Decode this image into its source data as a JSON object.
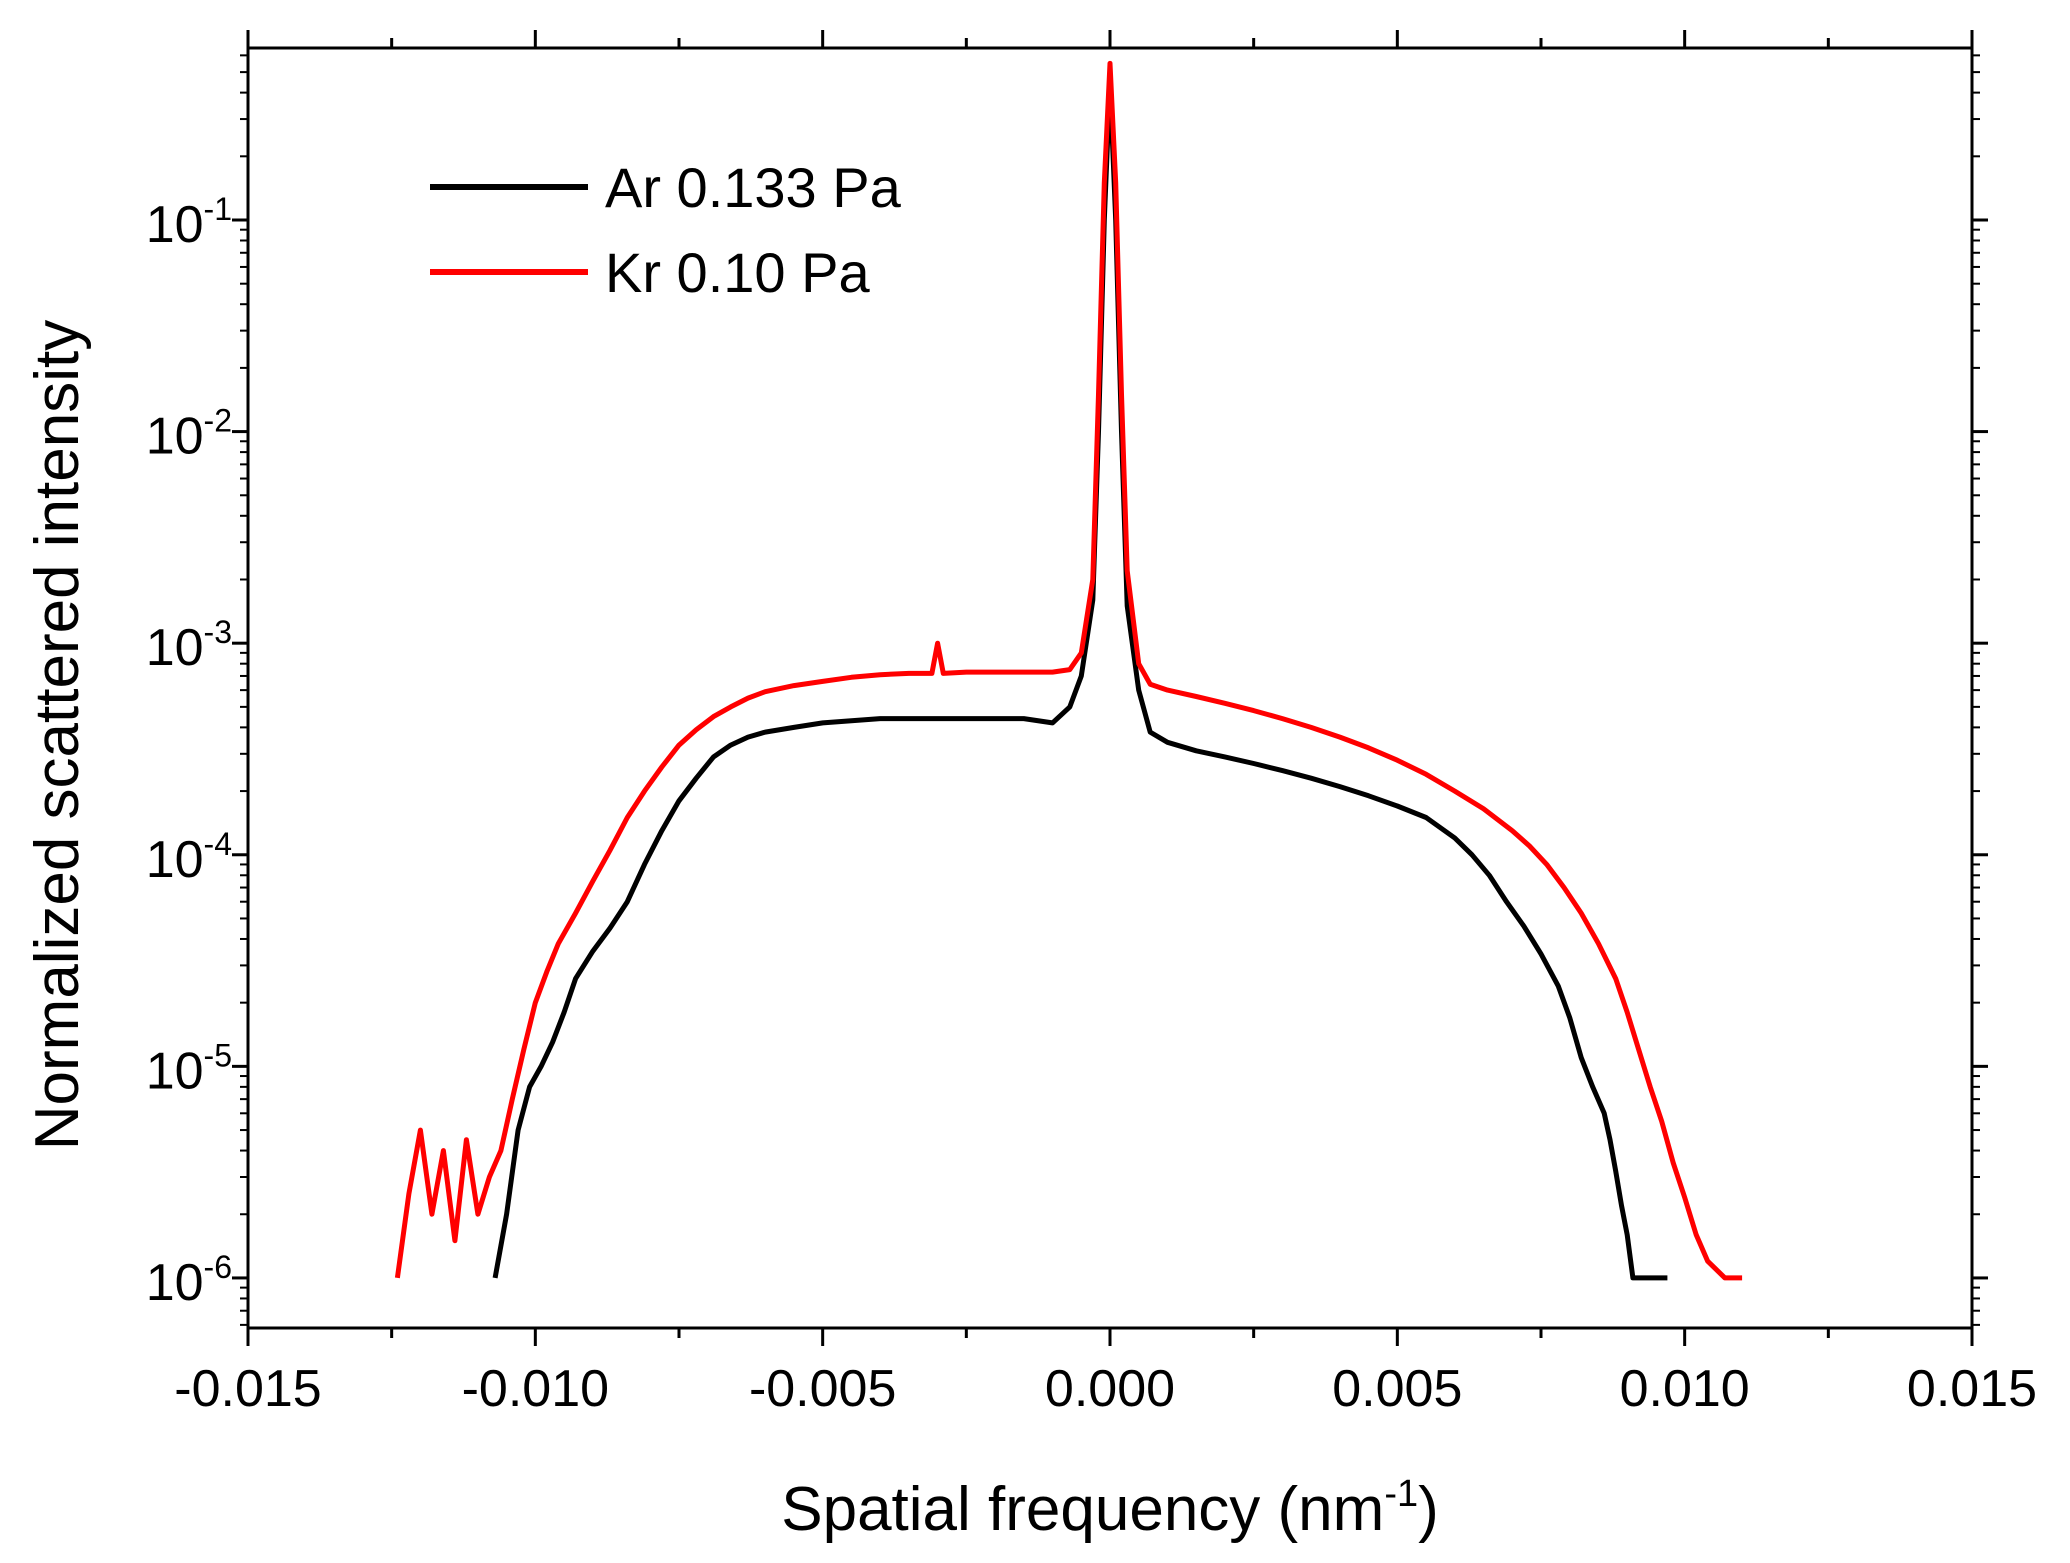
{
  "chart_data": {
    "type": "line",
    "title": "",
    "xlabel": "Spatial frequency (nm",
    "xlabel_sup": "-1",
    "xlabel_suffix": ")",
    "ylabel": "Normalized scattered intensity",
    "yscale": "log",
    "xlim": [
      -0.015,
      0.015
    ],
    "ylim": [
      5.8e-07,
      0.65
    ],
    "x_ticks": [
      -0.015,
      -0.01,
      -0.005,
      0.0,
      0.005,
      0.01,
      0.015
    ],
    "x_tick_labels": [
      "-0.015",
      "-0.010",
      "-0.005",
      "0.000",
      "0.005",
      "0.010",
      "0.015"
    ],
    "y_ticks": [
      1e-06,
      1e-05,
      0.0001,
      0.001,
      0.01,
      0.1
    ],
    "y_tick_base": "10",
    "y_tick_exponents": [
      "-6",
      "-5",
      "-4",
      "-3",
      "-2",
      "-1"
    ],
    "grid": false,
    "legend_position": "top-left",
    "series": [
      {
        "name": "Ar 0.133 Pa",
        "color": "#000000",
        "x": [
          -0.0107,
          -0.0105,
          -0.0103,
          -0.0101,
          -0.0099,
          -0.0097,
          -0.0095,
          -0.0093,
          -0.009,
          -0.0087,
          -0.0084,
          -0.0081,
          -0.0078,
          -0.0075,
          -0.0072,
          -0.0069,
          -0.0066,
          -0.0063,
          -0.006,
          -0.0055,
          -0.005,
          -0.0045,
          -0.004,
          -0.0035,
          -0.003,
          -0.0025,
          -0.002,
          -0.0015,
          -0.001,
          -0.0007,
          -0.0005,
          -0.0003,
          -0.0002,
          -0.0001,
          0.0,
          0.0001,
          0.0002,
          0.0003,
          0.0005,
          0.0007,
          0.001,
          0.0015,
          0.002,
          0.0025,
          0.003,
          0.0035,
          0.004,
          0.0045,
          0.005,
          0.0055,
          0.006,
          0.0063,
          0.0066,
          0.0069,
          0.0072,
          0.0075,
          0.0078,
          0.008,
          0.0082,
          0.0084,
          0.0086,
          0.0087,
          0.0088,
          0.0089,
          0.009,
          0.0091,
          0.0093,
          0.0095,
          0.0097
        ],
        "y": [
          1e-06,
          2e-06,
          5e-06,
          8e-06,
          1e-05,
          1.3e-05,
          1.8e-05,
          2.6e-05,
          3.5e-05,
          4.5e-05,
          6e-05,
          9e-05,
          0.00013,
          0.00018,
          0.00023,
          0.00029,
          0.00033,
          0.00036,
          0.00038,
          0.0004,
          0.00042,
          0.00043,
          0.00044,
          0.00044,
          0.00044,
          0.00044,
          0.00044,
          0.00044,
          0.00042,
          0.0005,
          0.0007,
          0.0016,
          0.01,
          0.1,
          0.45,
          0.1,
          0.01,
          0.0015,
          0.0006,
          0.00038,
          0.00034,
          0.00031,
          0.00029,
          0.00027,
          0.00025,
          0.00023,
          0.00021,
          0.00019,
          0.00017,
          0.00015,
          0.00012,
          0.0001,
          8e-05,
          6e-05,
          4.6e-05,
          3.4e-05,
          2.4e-05,
          1.7e-05,
          1.1e-05,
          8e-06,
          6e-06,
          4.5e-06,
          3.2e-06,
          2.2e-06,
          1.6e-06,
          1e-06,
          1e-06,
          1e-06,
          1e-06
        ]
      },
      {
        "name": "Kr 0.10 Pa",
        "color": "#ff0000",
        "x": [
          -0.0124,
          -0.0122,
          -0.012,
          -0.0118,
          -0.0116,
          -0.0114,
          -0.0112,
          -0.011,
          -0.0108,
          -0.0106,
          -0.0104,
          -0.0102,
          -0.01,
          -0.0098,
          -0.0096,
          -0.0093,
          -0.009,
          -0.0087,
          -0.0084,
          -0.0081,
          -0.0078,
          -0.0075,
          -0.0072,
          -0.0069,
          -0.0066,
          -0.0063,
          -0.006,
          -0.0055,
          -0.005,
          -0.0045,
          -0.004,
          -0.0035,
          -0.0031,
          -0.003,
          -0.0029,
          -0.0025,
          -0.002,
          -0.0015,
          -0.001,
          -0.0007,
          -0.0005,
          -0.0003,
          -0.0002,
          -0.0001,
          0.0,
          0.0001,
          0.0002,
          0.0003,
          0.0005,
          0.0007,
          0.001,
          0.0015,
          0.002,
          0.0025,
          0.003,
          0.0035,
          0.004,
          0.0045,
          0.005,
          0.0055,
          0.006,
          0.0065,
          0.007,
          0.0073,
          0.0076,
          0.0079,
          0.0082,
          0.0085,
          0.0088,
          0.009,
          0.0092,
          0.0094,
          0.0096,
          0.0098,
          0.01,
          0.0102,
          0.0104,
          0.0107,
          0.011
        ],
        "y": [
          1e-06,
          2.5e-06,
          5e-06,
          2e-06,
          4e-06,
          1.5e-06,
          4.5e-06,
          2e-06,
          3e-06,
          4e-06,
          7e-06,
          1.2e-05,
          2e-05,
          2.8e-05,
          3.8e-05,
          5.3e-05,
          7.5e-05,
          0.000105,
          0.00015,
          0.0002,
          0.00026,
          0.00033,
          0.00039,
          0.00045,
          0.0005,
          0.00055,
          0.00059,
          0.00063,
          0.00066,
          0.00069,
          0.00071,
          0.00072,
          0.00072,
          0.001,
          0.00072,
          0.00073,
          0.00073,
          0.00073,
          0.00073,
          0.00075,
          0.0009,
          0.002,
          0.015,
          0.15,
          0.55,
          0.15,
          0.015,
          0.0022,
          0.0008,
          0.00064,
          0.0006,
          0.00056,
          0.00052,
          0.00048,
          0.00044,
          0.0004,
          0.00036,
          0.00032,
          0.00028,
          0.00024,
          0.0002,
          0.000165,
          0.00013,
          0.00011,
          9e-05,
          7e-05,
          5.3e-05,
          3.8e-05,
          2.6e-05,
          1.8e-05,
          1.2e-05,
          8e-06,
          5.5e-06,
          3.5e-06,
          2.4e-06,
          1.6e-06,
          1.2e-06,
          1e-06,
          1e-06
        ]
      }
    ]
  }
}
